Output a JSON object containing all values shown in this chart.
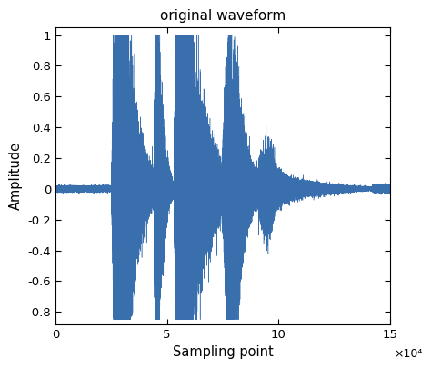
{
  "title": "original waveform",
  "xlabel": "Sampling point",
  "ylabel": "Amplitude",
  "xlim": [
    0,
    150000
  ],
  "ylim": [
    -0.88,
    1.05
  ],
  "yticks": [
    -0.8,
    -0.6,
    -0.4,
    -0.2,
    0,
    0.2,
    0.4,
    0.6,
    0.8,
    1.0
  ],
  "xticks": [
    0,
    50000,
    100000,
    150000
  ],
  "xtick_labels": [
    "0",
    "5",
    "10",
    "15"
  ],
  "xscale_label": "×10⁴",
  "line_color": "#3a6fad",
  "total_samples": 150000,
  "seed": 7
}
